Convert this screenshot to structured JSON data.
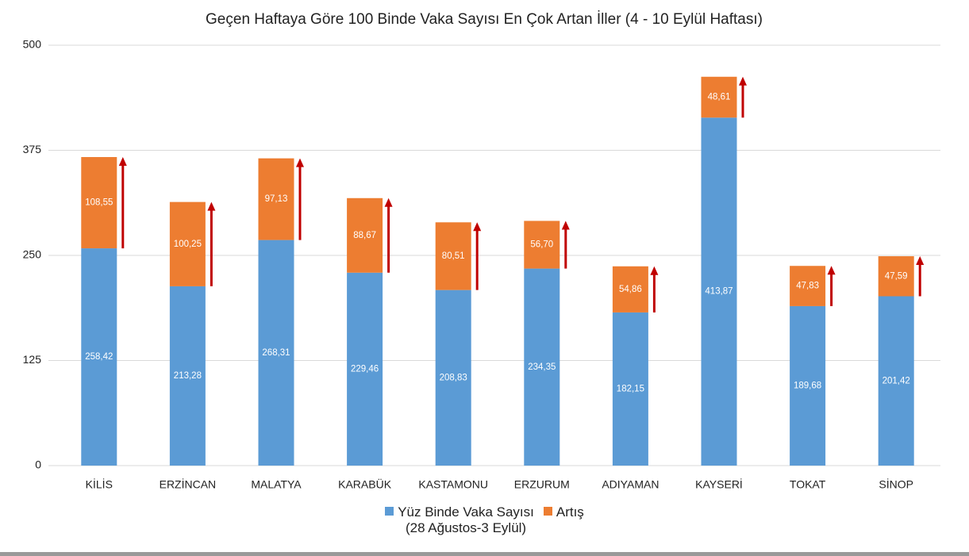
{
  "chart_data": {
    "type": "stacked-bar",
    "title": "Geçen Haftaya Göre 100 Binde Vaka Sayısı En Çok Artan İller (4 - 10 Eylül Haftası)",
    "categories": [
      "KİLİS",
      "ERZİNCAN",
      "MALATYA",
      "KARABÜK",
      "KASTAMONU",
      "ERZURUM",
      "ADIYAMAN",
      "KAYSERİ",
      "TOKAT",
      "SİNOP"
    ],
    "series": [
      {
        "name": "Yüz Binde Vaka Sayısı\n(28 Ağustos-3 Eylül)",
        "color": "#5b9bd5",
        "values": [
          258.42,
          213.28,
          268.31,
          229.46,
          208.83,
          234.35,
          182.15,
          413.87,
          189.68,
          201.42
        ],
        "value_labels": [
          "258,42",
          "213,28",
          "268,31",
          "229,46",
          "208,83",
          "234,35",
          "182,15",
          "413,87",
          "189,68",
          "201,42"
        ]
      },
      {
        "name": "Artış",
        "color": "#ed7d31",
        "values": [
          108.55,
          100.25,
          97.13,
          88.67,
          80.51,
          56.7,
          54.86,
          48.61,
          47.83,
          47.59
        ],
        "value_labels": [
          "108,55",
          "100,25",
          "97,13",
          "88,67",
          "80,51",
          "56,70",
          "54,86",
          "48,61",
          "47,83",
          "47,59"
        ]
      }
    ],
    "arrow_color": "#c00000",
    "ylim": [
      0,
      500
    ],
    "yticks": [
      0,
      125,
      250,
      375,
      500
    ],
    "grid": true
  }
}
